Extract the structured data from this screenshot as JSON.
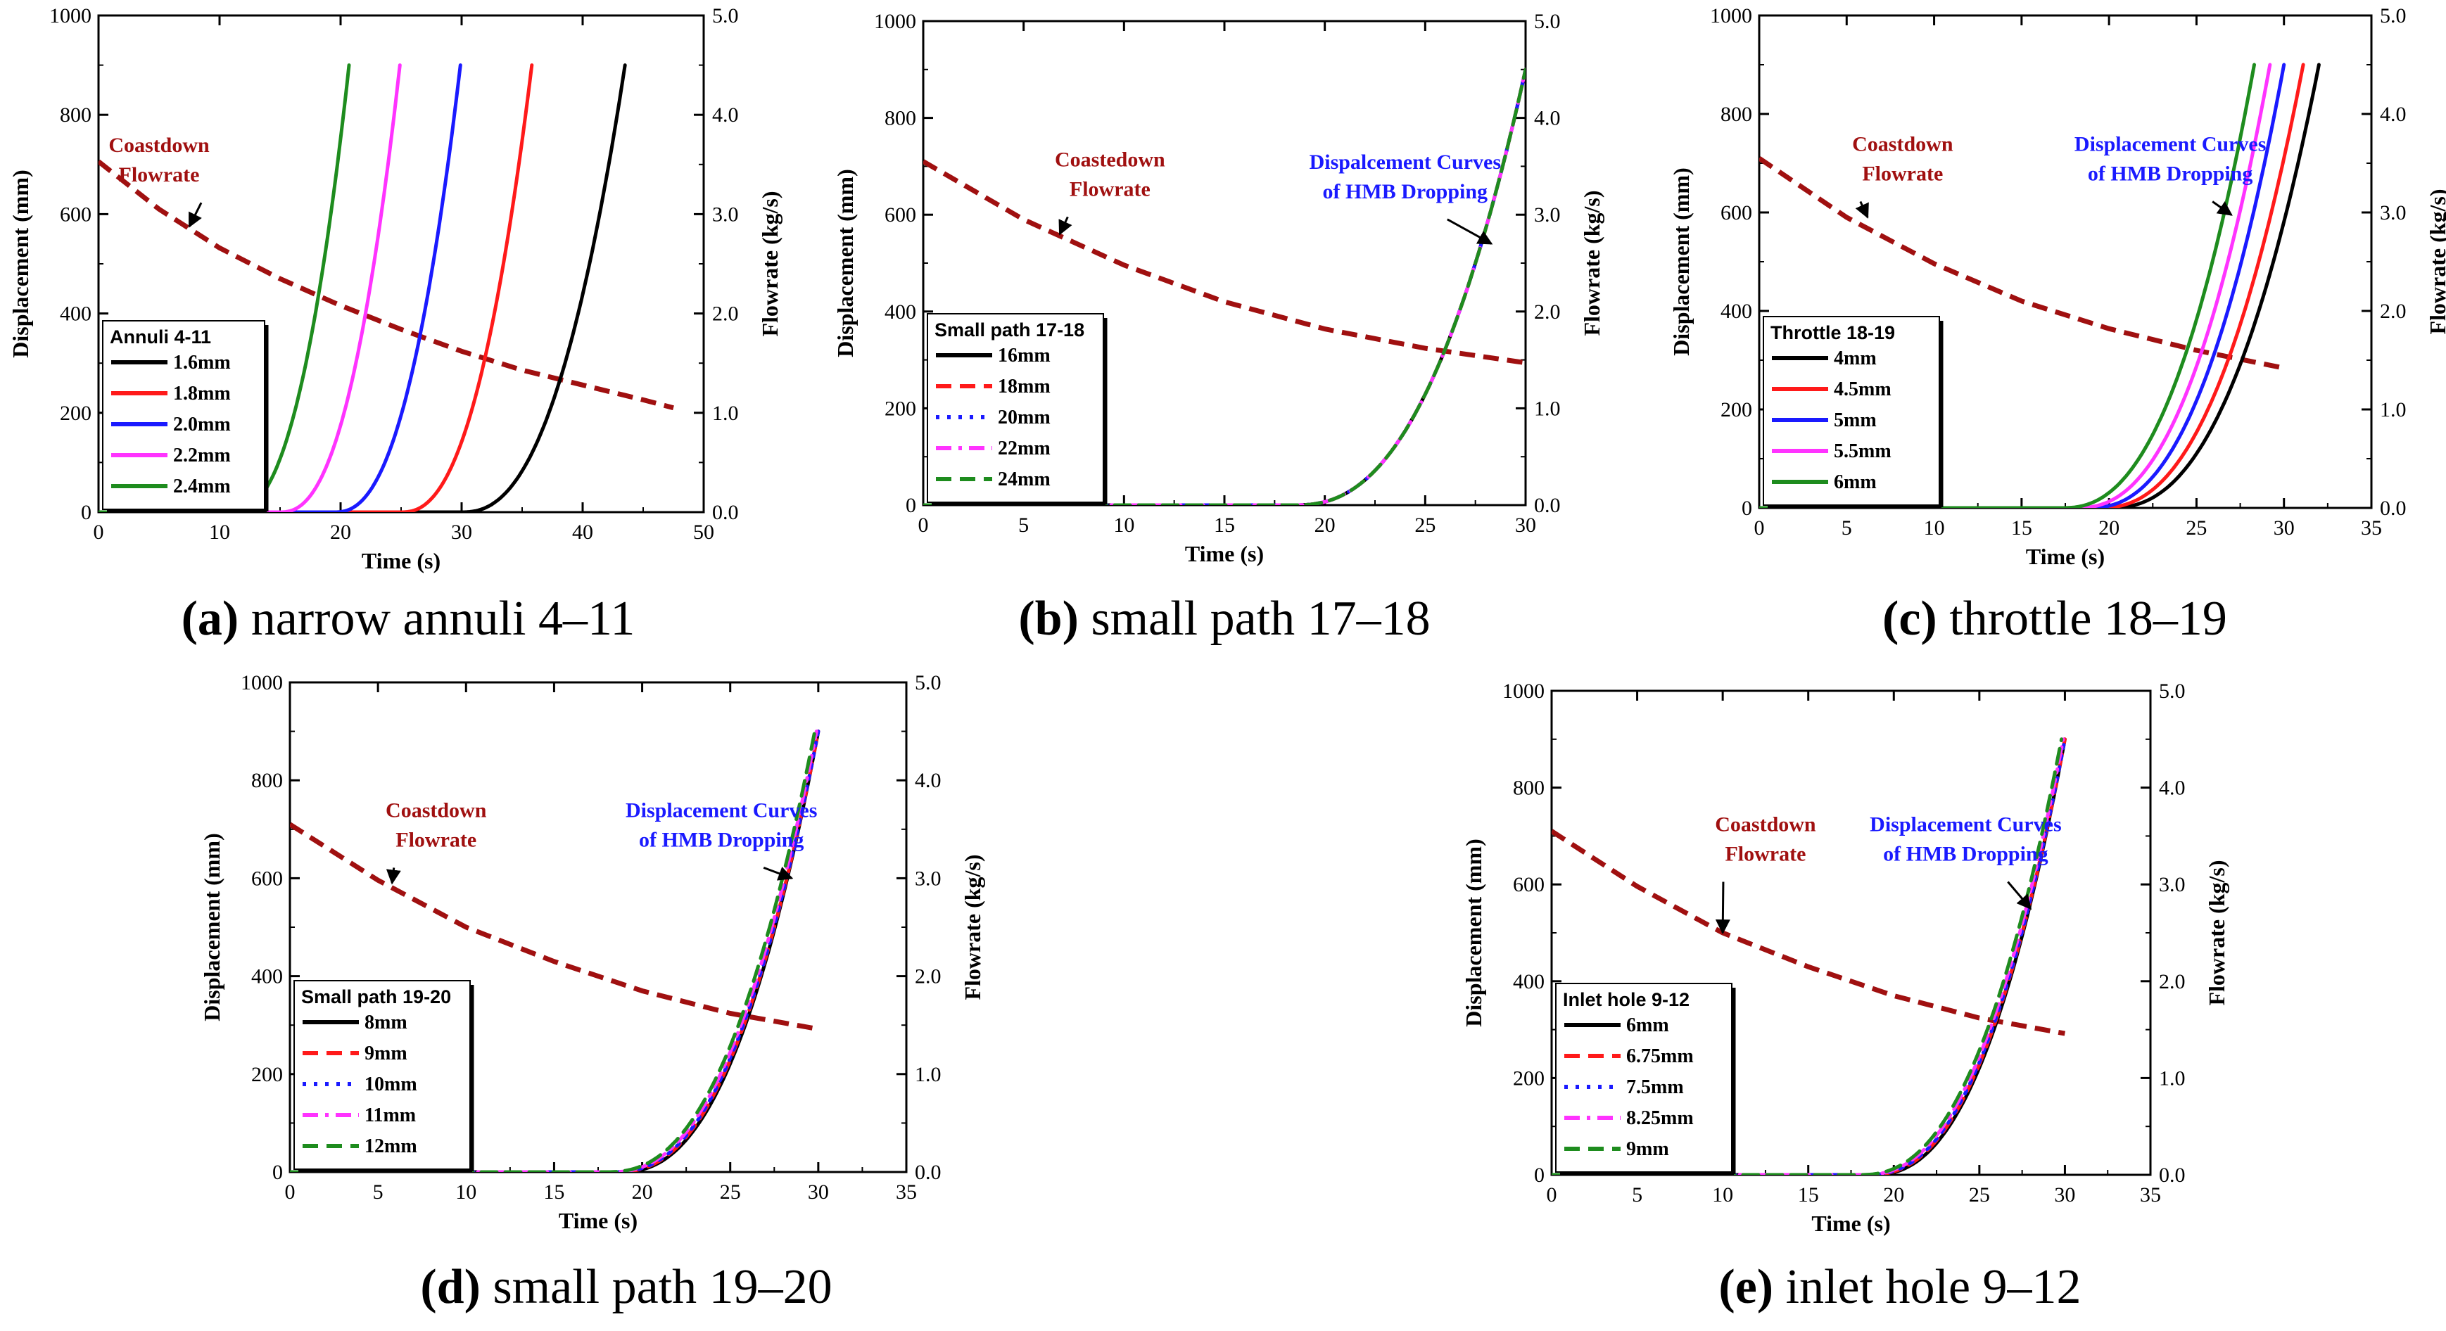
{
  "colors": {
    "flow": "#A01010",
    "black": "#000000",
    "red": "#FF1A1A",
    "blue": "#1A1AFF",
    "magenta": "#FF33FF",
    "green": "#1E8C1E",
    "annot_blue": "#1A1AFF",
    "annot_red": "#A01010"
  },
  "chart_data": [
    {
      "id": "a",
      "type": "line",
      "xlabel": "Time (s)",
      "ylabel": "Displacement (mm)",
      "y2label": "Flowrate (kg/s)",
      "xlim": [
        0,
        50
      ],
      "xticks": [
        "0",
        "10",
        "20",
        "30",
        "40",
        "50"
      ],
      "ylim": [
        0,
        1000
      ],
      "yticks": [
        "0",
        "200",
        "400",
        "600",
        "800",
        "1000"
      ],
      "y2lim": [
        0,
        5
      ],
      "y2ticks": [
        "0.0",
        "1.0",
        "2.0",
        "3.0",
        "4.0",
        "5.0"
      ],
      "legend_title": "Annuli 4-11",
      "legend_placement": "left",
      "series": [
        {
          "name": "1.6mm",
          "style": "solid",
          "color": "#000000",
          "start": 30,
          "end": 43.5,
          "max": 900
        },
        {
          "name": "1.8mm",
          "style": "solid",
          "color": "#FF1A1A",
          "start": 25,
          "end": 35.8,
          "max": 900
        },
        {
          "name": "2.0mm",
          "style": "solid",
          "color": "#1A1AFF",
          "start": 19.5,
          "end": 29.9,
          "max": 900
        },
        {
          "name": "2.2mm",
          "style": "solid",
          "color": "#FF33FF",
          "start": 15,
          "end": 24.9,
          "max": 900
        },
        {
          "name": "2.4mm",
          "style": "solid",
          "color": "#1E8C1E",
          "start": 11,
          "end": 20.7,
          "max": 900
        }
      ],
      "flow": {
        "x": [
          0,
          5,
          10,
          15,
          20,
          25,
          30,
          35,
          40,
          45,
          47.5
        ],
        "y": [
          3.53,
          3.05,
          2.66,
          2.35,
          2.08,
          1.84,
          1.62,
          1.43,
          1.28,
          1.13,
          1.05
        ]
      },
      "annotations": [
        {
          "lines": [
            "Coastdown",
            "Flowrate"
          ],
          "color": "#A01010",
          "x": 5,
          "y": 725,
          "arrow_to": [
            7.5,
            575
          ]
        }
      ],
      "caption_letter": "(a)",
      "caption_text": " narrow annuli 4–11"
    },
    {
      "id": "b",
      "type": "line",
      "xlabel": "Time (s)",
      "ylabel": "Displacement (mm)",
      "y2label": "Flowrate (kg/s)",
      "xlim": [
        0,
        30
      ],
      "xticks": [
        "0",
        "5",
        "10",
        "15",
        "20",
        "25",
        "30"
      ],
      "ylim": [
        0,
        1000
      ],
      "yticks": [
        "0",
        "200",
        "400",
        "600",
        "800",
        "1000"
      ],
      "y2lim": [
        0,
        5
      ],
      "y2ticks": [
        "0.0",
        "1.0",
        "2.0",
        "3.0",
        "4.0",
        "5.0"
      ],
      "legend_title": "Small path 17-18",
      "legend_placement": "left",
      "series": [
        {
          "name": "16mm",
          "style": "solid",
          "color": "#000000",
          "start": 18.5,
          "end": 30,
          "max": 900
        },
        {
          "name": "18mm",
          "style": "dash",
          "color": "#FF1A1A",
          "start": 18.5,
          "end": 30,
          "max": 900
        },
        {
          "name": "20mm",
          "style": "dot",
          "color": "#1A1AFF",
          "start": 18.5,
          "end": 30,
          "max": 900
        },
        {
          "name": "22mm",
          "style": "dashdot",
          "color": "#FF33FF",
          "start": 18.5,
          "end": 30,
          "max": 900
        },
        {
          "name": "24mm",
          "style": "dash",
          "color": "#1E8C1E",
          "start": 18.5,
          "end": 30,
          "max": 900
        }
      ],
      "flow": {
        "x": [
          0,
          5,
          10,
          15,
          20,
          25,
          30
        ],
        "y": [
          3.55,
          2.95,
          2.48,
          2.1,
          1.82,
          1.62,
          1.47
        ]
      },
      "annotations": [
        {
          "lines": [
            "Coastedown",
            "Flowrate"
          ],
          "color": "#A01010",
          "x": 9.3,
          "y": 700,
          "arrow_to": [
            6.8,
            560
          ]
        },
        {
          "lines": [
            "Dispalcement Curves",
            "of HMB Dropping"
          ],
          "color": "#1A1AFF",
          "x": 24,
          "y": 695,
          "arrow_to": [
            28.3,
            540
          ]
        }
      ],
      "caption_letter": "(b)",
      "caption_text": " small path 17–18"
    },
    {
      "id": "c",
      "type": "line",
      "xlabel": "Time (s)",
      "ylabel": "Displacement (mm)",
      "y2label": "Flowrate (kg/s)",
      "xlim": [
        0,
        35
      ],
      "xticks": [
        "0",
        "5",
        "10",
        "15",
        "20",
        "25",
        "30",
        "35"
      ],
      "ylim": [
        0,
        1000
      ],
      "yticks": [
        "0",
        "200",
        "400",
        "600",
        "800",
        "1000"
      ],
      "y2lim": [
        0,
        5
      ],
      "y2ticks": [
        "0.0",
        "1.0",
        "2.0",
        "3.0",
        "4.0",
        "5.0"
      ],
      "legend_title": "Throttle 18-19",
      "legend_placement": "left",
      "series": [
        {
          "name": "4mm",
          "style": "solid",
          "color": "#000000",
          "start": 20,
          "end": 32,
          "max": 900
        },
        {
          "name": "4.5mm",
          "style": "solid",
          "color": "#FF1A1A",
          "start": 19.4,
          "end": 31.1,
          "max": 900
        },
        {
          "name": "5mm",
          "style": "solid",
          "color": "#1A1AFF",
          "start": 18.8,
          "end": 30,
          "max": 900
        },
        {
          "name": "5.5mm",
          "style": "solid",
          "color": "#FF33FF",
          "start": 18.1,
          "end": 29.2,
          "max": 900
        },
        {
          "name": "6mm",
          "style": "solid",
          "color": "#1E8C1E",
          "start": 17.3,
          "end": 28.3,
          "max": 900
        }
      ],
      "flow": {
        "x": [
          0,
          5,
          10,
          15,
          20,
          25,
          30
        ],
        "y": [
          3.55,
          2.95,
          2.48,
          2.1,
          1.82,
          1.6,
          1.42
        ]
      },
      "annotations": [
        {
          "lines": [
            "Coastdown",
            "Flowrate"
          ],
          "color": "#A01010",
          "x": 8.2,
          "y": 725,
          "arrow_to": [
            6.2,
            590
          ]
        },
        {
          "lines": [
            "Displacement Curves",
            "of HMB Dropping"
          ],
          "color": "#1A1AFF",
          "x": 23.5,
          "y": 725,
          "arrow_to": [
            27,
            595
          ]
        }
      ],
      "caption_letter": "(c)",
      "caption_text": " throttle 18–19"
    },
    {
      "id": "d",
      "type": "line",
      "xlabel": "Time (s)",
      "ylabel": "Displacement (mm)",
      "y2label": "Flowrate (kg/s)",
      "xlim": [
        0,
        35
      ],
      "xticks": [
        "0",
        "5",
        "10",
        "15",
        "20",
        "25",
        "30",
        "35"
      ],
      "ylim": [
        0,
        1000
      ],
      "yticks": [
        "0",
        "200",
        "400",
        "600",
        "800",
        "1000"
      ],
      "y2lim": [
        0,
        5
      ],
      "y2ticks": [
        "0.0",
        "1.0",
        "2.0",
        "3.0",
        "4.0",
        "5.0"
      ],
      "legend_title": "Small path 19-20",
      "legend_placement": "left",
      "series": [
        {
          "name": "8mm",
          "style": "solid",
          "color": "#000000",
          "start": 18.7,
          "end": 30,
          "max": 900
        },
        {
          "name": "9mm",
          "style": "dash",
          "color": "#FF1A1A",
          "start": 18.5,
          "end": 30,
          "max": 900
        },
        {
          "name": "10mm",
          "style": "dot",
          "color": "#1A1AFF",
          "start": 18.4,
          "end": 30,
          "max": 900
        },
        {
          "name": "11mm",
          "style": "dashdot",
          "color": "#FF33FF",
          "start": 18.2,
          "end": 29.9,
          "max": 900
        },
        {
          "name": "12mm",
          "style": "dash",
          "color": "#1E8C1E",
          "start": 18,
          "end": 29.8,
          "max": 900
        }
      ],
      "flow": {
        "x": [
          0,
          5,
          10,
          15,
          20,
          25,
          30
        ],
        "y": [
          3.55,
          2.98,
          2.5,
          2.15,
          1.85,
          1.62,
          1.46
        ]
      },
      "annotations": [
        {
          "lines": [
            "Coastdown",
            "Flowrate"
          ],
          "color": "#A01010",
          "x": 8.3,
          "y": 725,
          "arrow_to": [
            5.8,
            590
          ]
        },
        {
          "lines": [
            "Displacement Curves",
            "of HMB Dropping"
          ],
          "color": "#1A1AFF",
          "x": 24.5,
          "y": 725,
          "arrow_to": [
            28.5,
            600
          ]
        }
      ],
      "caption_letter": "(d)",
      "caption_text": " small path 19–20"
    },
    {
      "id": "e",
      "type": "line",
      "xlabel": "Time (s)",
      "ylabel": "Displacement (mm)",
      "y2label": "Flowrate (kg/s)",
      "xlim": [
        0,
        35
      ],
      "xticks": [
        "0",
        "5",
        "10",
        "15",
        "20",
        "25",
        "30",
        "35"
      ],
      "ylim": [
        0,
        1000
      ],
      "yticks": [
        "0",
        "200",
        "400",
        "600",
        "800",
        "1000"
      ],
      "y2lim": [
        0,
        5
      ],
      "y2ticks": [
        "0.0",
        "1.0",
        "2.0",
        "3.0",
        "4.0",
        "5.0"
      ],
      "legend_title": "Inlet hole 9-12",
      "legend_placement": "left",
      "series": [
        {
          "name": "6mm",
          "style": "solid",
          "color": "#000000",
          "start": 18.7,
          "end": 30,
          "max": 900
        },
        {
          "name": "6.75mm",
          "style": "dash",
          "color": "#FF1A1A",
          "start": 18.5,
          "end": 30,
          "max": 900
        },
        {
          "name": "7.5mm",
          "style": "dot",
          "color": "#1A1AFF",
          "start": 18.4,
          "end": 30,
          "max": 900
        },
        {
          "name": "8.25mm",
          "style": "dashdot",
          "color": "#FF33FF",
          "start": 18.2,
          "end": 29.9,
          "max": 900
        },
        {
          "name": "9mm",
          "style": "dash",
          "color": "#1E8C1E",
          "start": 18,
          "end": 29.8,
          "max": 900
        }
      ],
      "flow": {
        "x": [
          0,
          5,
          10,
          15,
          20,
          25,
          30
        ],
        "y": [
          3.55,
          2.98,
          2.5,
          2.15,
          1.85,
          1.62,
          1.46
        ]
      },
      "annotations": [
        {
          "lines": [
            "Coastdown",
            "Flowrate"
          ],
          "color": "#A01010",
          "x": 12.5,
          "y": 710,
          "arrow_to": [
            10,
            500
          ]
        },
        {
          "lines": [
            "Displacement Curves",
            "of HMB Dropping"
          ],
          "color": "#1A1AFF",
          "x": 24.2,
          "y": 710,
          "arrow_to": [
            28,
            550
          ]
        }
      ],
      "caption_letter": "(e)",
      "caption_text": " inlet hole 9–12"
    }
  ]
}
